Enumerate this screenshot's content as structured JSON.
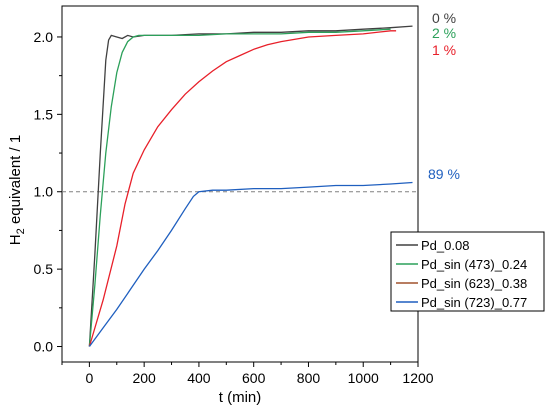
{
  "chart_data": {
    "type": "line",
    "xlabel": "t (min)",
    "ylabel": "H2 equivalent / 1",
    "ylabel_main": "H",
    "ylabel_sub": "2",
    "ylabel_rest": " equivalent / 1",
    "xlim": [
      -100,
      1200
    ],
    "ylim": [
      -0.1,
      2.2
    ],
    "xticks": [
      0,
      200,
      400,
      600,
      800,
      1000,
      1200
    ],
    "xtick_labels": [
      "0",
      "200",
      "400",
      "600",
      "800",
      "1000",
      "1200"
    ],
    "yticks": [
      0.0,
      0.5,
      1.0,
      1.5,
      2.0
    ],
    "ytick_labels": [
      "0.0",
      "0.5",
      "1.0",
      "1.5",
      "2.0"
    ],
    "reference_line": {
      "y": 1.0,
      "style": "dashed",
      "color": "#808080"
    },
    "legend_position": "right",
    "series": [
      {
        "name": "Pd_0.08",
        "color": "#404040",
        "end_label": "0 %",
        "x": [
          0,
          20,
          40,
          60,
          70,
          80,
          100,
          120,
          140,
          160,
          200,
          300,
          400,
          500,
          600,
          700,
          800,
          900,
          1000,
          1100,
          1180
        ],
        "y": [
          0.0,
          0.6,
          1.25,
          1.85,
          1.98,
          2.01,
          2.0,
          1.99,
          2.01,
          2.0,
          2.01,
          2.01,
          2.02,
          2.02,
          2.03,
          2.03,
          2.04,
          2.04,
          2.05,
          2.06,
          2.07
        ]
      },
      {
        "name": "Pd_sin (473)_0.24",
        "color": "#2ca05a",
        "end_label": "2 %",
        "x": [
          0,
          20,
          40,
          60,
          80,
          100,
          120,
          140,
          160,
          180,
          200,
          300,
          400,
          500,
          600,
          700,
          800,
          900,
          1000,
          1100
        ],
        "y": [
          0.0,
          0.4,
          0.85,
          1.25,
          1.55,
          1.77,
          1.9,
          1.97,
          2.0,
          2.01,
          2.01,
          2.01,
          2.01,
          2.02,
          2.02,
          2.02,
          2.03,
          2.03,
          2.04,
          2.05
        ]
      },
      {
        "name": "Pd_sin (623)_0.38",
        "color": "#e8202a",
        "legend_color": "#a0522d",
        "end_label": "1 %",
        "x": [
          0,
          50,
          100,
          130,
          160,
          200,
          250,
          300,
          350,
          400,
          450,
          500,
          550,
          600,
          650,
          700,
          800,
          900,
          1000,
          1100,
          1120
        ],
        "y": [
          0.0,
          0.3,
          0.65,
          0.92,
          1.12,
          1.27,
          1.42,
          1.53,
          1.63,
          1.71,
          1.78,
          1.84,
          1.88,
          1.92,
          1.95,
          1.97,
          2.0,
          2.01,
          2.02,
          2.04,
          2.04
        ]
      },
      {
        "name": "Pd_sin (723)_0.77",
        "color": "#1f5fbf",
        "end_label": "89 %",
        "x": [
          0,
          50,
          100,
          150,
          200,
          250,
          300,
          350,
          380,
          400,
          450,
          500,
          600,
          700,
          800,
          900,
          1000,
          1100,
          1180
        ],
        "y": [
          0.0,
          0.12,
          0.24,
          0.37,
          0.5,
          0.62,
          0.75,
          0.89,
          0.97,
          1.0,
          1.01,
          1.01,
          1.02,
          1.02,
          1.03,
          1.04,
          1.04,
          1.05,
          1.06
        ]
      }
    ]
  }
}
